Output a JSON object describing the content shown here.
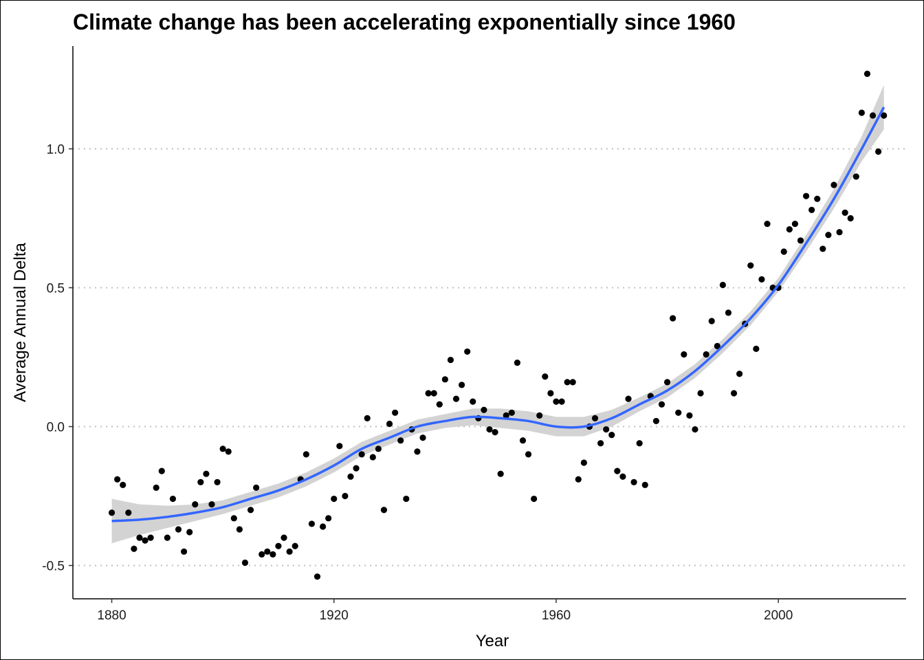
{
  "chart_data": {
    "type": "scatter",
    "title": "Climate change has been accelerating exponentially since 1960",
    "xlabel": "Year",
    "ylabel": "Average Annual Delta",
    "xlim": [
      1873,
      2023
    ],
    "ylim": [
      -0.62,
      1.37
    ],
    "x_ticks": [
      "1880",
      "1920",
      "1960",
      "2000"
    ],
    "x_tick_values": [
      1880,
      1920,
      1960,
      2000
    ],
    "y_ticks": [
      "-0.5",
      "0.0",
      "0.5",
      "1.0"
    ],
    "y_tick_values": [
      -0.5,
      0.0,
      0.5,
      1.0
    ],
    "grid": "horizontal dotted",
    "colors": {
      "points": "#000000",
      "smooth_line": "#3366ff",
      "confidence_band": "#d3d3d3",
      "grid": "#bfbfbf"
    },
    "points": {
      "x": [
        1880,
        1881,
        1882,
        1883,
        1884,
        1885,
        1886,
        1887,
        1888,
        1889,
        1890,
        1891,
        1892,
        1893,
        1894,
        1895,
        1896,
        1897,
        1898,
        1899,
        1900,
        1901,
        1902,
        1903,
        1904,
        1905,
        1906,
        1907,
        1908,
        1909,
        1910,
        1911,
        1912,
        1913,
        1914,
        1915,
        1916,
        1917,
        1918,
        1919,
        1920,
        1921,
        1922,
        1923,
        1924,
        1925,
        1926,
        1927,
        1928,
        1929,
        1930,
        1931,
        1932,
        1933,
        1934,
        1935,
        1936,
        1937,
        1938,
        1939,
        1940,
        1941,
        1942,
        1943,
        1944,
        1945,
        1946,
        1947,
        1948,
        1949,
        1950,
        1951,
        1952,
        1953,
        1954,
        1955,
        1956,
        1957,
        1958,
        1959,
        1960,
        1961,
        1962,
        1963,
        1964,
        1965,
        1966,
        1967,
        1968,
        1969,
        1970,
        1971,
        1972,
        1973,
        1974,
        1975,
        1976,
        1977,
        1978,
        1979,
        1980,
        1981,
        1982,
        1983,
        1984,
        1985,
        1986,
        1987,
        1988,
        1989,
        1990,
        1991,
        1992,
        1993,
        1994,
        1995,
        1996,
        1997,
        1998,
        1999,
        2000,
        2001,
        2002,
        2003,
        2004,
        2005,
        2006,
        2007,
        2008,
        2009,
        2010,
        2011,
        2012,
        2013,
        2014,
        2015,
        2016,
        2017,
        2018,
        2019
      ],
      "y": [
        -0.31,
        -0.19,
        -0.21,
        -0.31,
        -0.44,
        -0.4,
        -0.41,
        -0.4,
        -0.22,
        -0.16,
        -0.4,
        -0.26,
        -0.37,
        -0.45,
        -0.38,
        -0.28,
        -0.2,
        -0.17,
        -0.28,
        -0.2,
        -0.08,
        -0.09,
        -0.33,
        -0.37,
        -0.49,
        -0.3,
        -0.22,
        -0.46,
        -0.45,
        -0.46,
        -0.43,
        -0.4,
        -0.45,
        -0.43,
        -0.19,
        -0.1,
        -0.35,
        -0.54,
        -0.36,
        -0.33,
        -0.26,
        -0.07,
        -0.25,
        -0.18,
        -0.15,
        -0.1,
        0.03,
        -0.11,
        -0.08,
        -0.3,
        0.01,
        0.05,
        -0.05,
        -0.26,
        -0.01,
        -0.09,
        -0.04,
        0.12,
        0.12,
        0.08,
        0.17,
        0.24,
        0.1,
        0.15,
        0.27,
        0.09,
        0.03,
        0.06,
        -0.01,
        -0.02,
        -0.17,
        0.04,
        0.05,
        0.23,
        -0.05,
        -0.1,
        -0.26,
        0.04,
        0.18,
        0.12,
        0.09,
        0.09,
        0.16,
        0.16,
        -0.19,
        -0.13,
        0.0,
        0.03,
        -0.06,
        -0.01,
        -0.03,
        -0.16,
        -0.18,
        0.1,
        -0.2,
        -0.06,
        -0.21,
        0.11,
        0.02,
        0.08,
        0.16,
        0.39,
        0.05,
        0.26,
        0.04,
        -0.01,
        0.12,
        0.26,
        0.38,
        0.29,
        0.51,
        0.41,
        0.12,
        0.19,
        0.37,
        0.58,
        0.28,
        0.53,
        0.73,
        0.5,
        0.5,
        0.63,
        0.71,
        0.73,
        0.67,
        0.83,
        0.78,
        0.82,
        0.64,
        0.69,
        0.87,
        0.7,
        0.77,
        0.75,
        0.9,
        1.13,
        1.27,
        1.12,
        0.99,
        1.12
      ]
    },
    "smooth": {
      "x": [
        1880,
        1885,
        1890,
        1895,
        1900,
        1905,
        1910,
        1915,
        1920,
        1925,
        1930,
        1935,
        1940,
        1945,
        1950,
        1955,
        1960,
        1965,
        1970,
        1975,
        1980,
        1985,
        1990,
        1995,
        2000,
        2005,
        2010,
        2015,
        2019
      ],
      "y": [
        -0.34,
        -0.335,
        -0.325,
        -0.31,
        -0.29,
        -0.26,
        -0.23,
        -0.19,
        -0.14,
        -0.08,
        -0.04,
        0.0,
        0.02,
        0.035,
        0.03,
        0.02,
        0.0,
        0.0,
        0.03,
        0.08,
        0.13,
        0.2,
        0.29,
        0.39,
        0.51,
        0.66,
        0.82,
        1.0,
        1.15
      ],
      "band": [
        0.08,
        0.055,
        0.04,
        0.03,
        0.025,
        0.025,
        0.025,
        0.025,
        0.025,
        0.025,
        0.025,
        0.025,
        0.025,
        0.03,
        0.035,
        0.035,
        0.035,
        0.035,
        0.03,
        0.025,
        0.025,
        0.025,
        0.025,
        0.025,
        0.025,
        0.03,
        0.035,
        0.045,
        0.08
      ]
    }
  }
}
